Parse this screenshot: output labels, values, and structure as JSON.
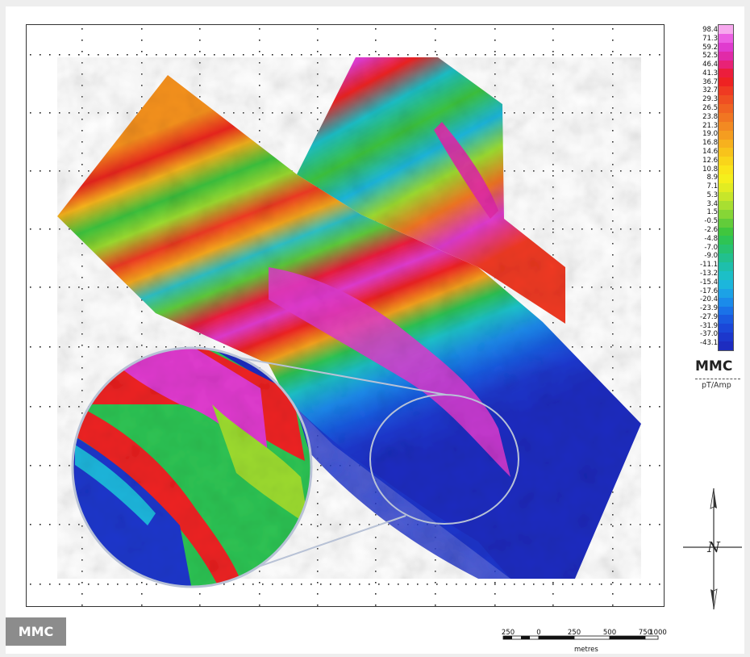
{
  "branding": {
    "watermark_top": "MMC",
    "badge": "MMC"
  },
  "legend": {
    "labels": [
      "98.4",
      "71.3",
      "59.2",
      "52.5",
      "46.4",
      "41.3",
      "36.7",
      "32.7",
      "29.3",
      "26.5",
      "23.8",
      "21.3",
      "19.0",
      "16.8",
      "14.6",
      "12.6",
      "10.8",
      "8.9",
      "7.1",
      "5.3",
      "3.4",
      "1.5",
      "-0.5",
      "-2.6",
      "-4.8",
      "-7.0",
      "-9.0",
      "-11.1",
      "-13.2",
      "-15.4",
      "-17.6",
      "-20.4",
      "-23.9",
      "-27.9",
      "-31.9",
      "-37.0",
      "-43.1"
    ],
    "unit": "pT/Amp",
    "colors": [
      "#f7a8ee",
      "#ec5fe3",
      "#e03bcf",
      "#e12aa8",
      "#e82276",
      "#ec1d3c",
      "#ee2222",
      "#ef3a22",
      "#ef4f22",
      "#f06322",
      "#f17622",
      "#f38a22",
      "#f59d20",
      "#f7b11e",
      "#f8c31b",
      "#f9d51a",
      "#fae51a",
      "#f5ef1c",
      "#e2ec22",
      "#c7e62a",
      "#a8df31",
      "#86d636",
      "#62cc3a",
      "#40c63e",
      "#2ec454",
      "#27c270",
      "#22c08e",
      "#1ebfac",
      "#1cbfc7",
      "#1cb6dc",
      "#1ca2e6",
      "#1b8bea",
      "#1a72e8",
      "#1a5ae0",
      "#1b47d8",
      "#1c37cc",
      "#1d2cc0"
    ]
  },
  "scale_bar": {
    "ticks": [
      "250",
      "0",
      "250",
      "500",
      "750",
      "1000"
    ],
    "unit": "metres"
  },
  "north_arrow": {
    "label": "N"
  },
  "map": {
    "inset_description_none": ""
  }
}
